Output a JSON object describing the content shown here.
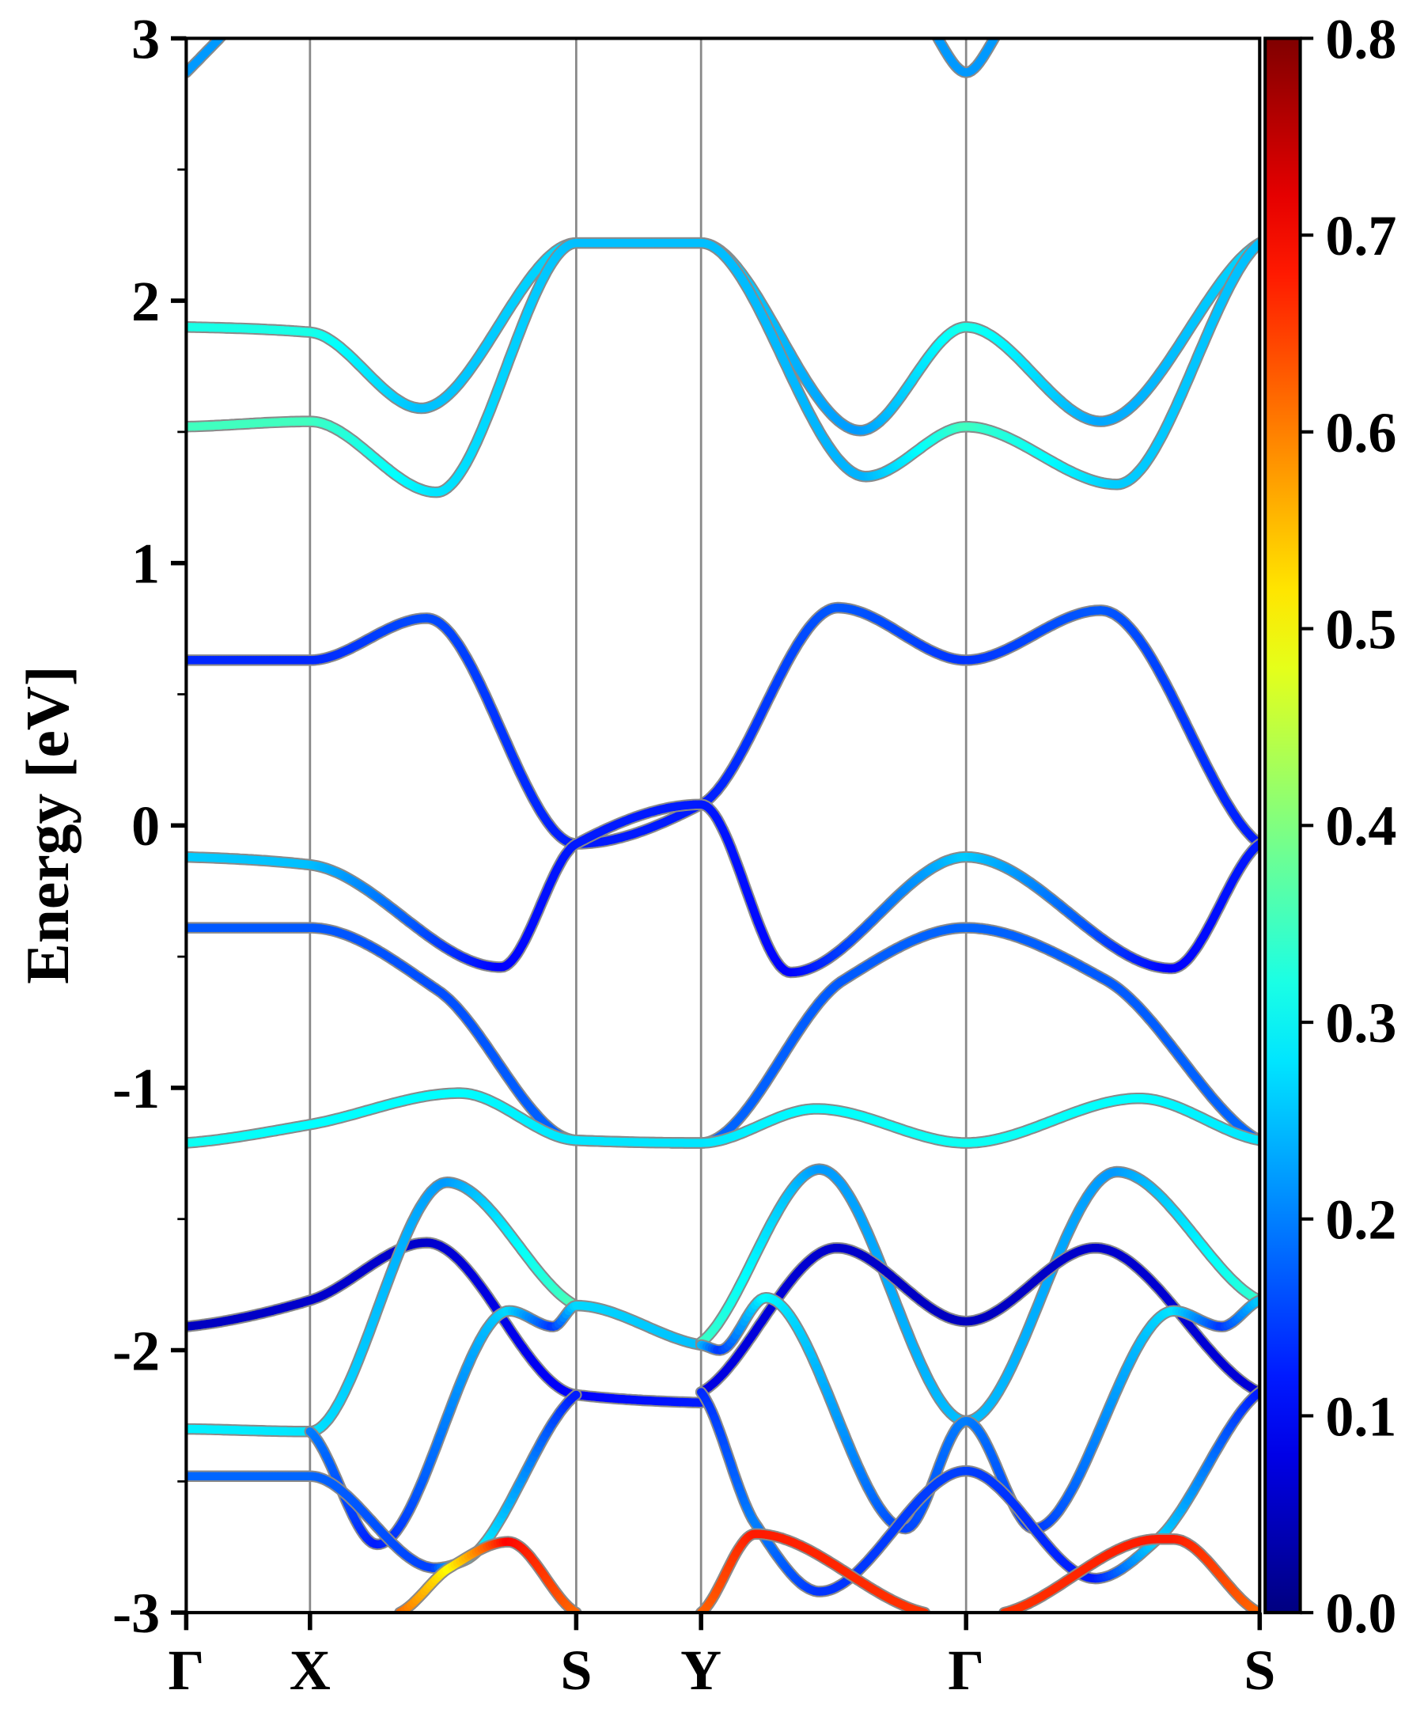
{
  "chart_data": {
    "type": "line",
    "title": "",
    "xlabel": "",
    "ylabel": "Energy [eV]",
    "ylim": [
      -3,
      3
    ],
    "yticks": [
      "3",
      "2",
      "1",
      "0",
      "-1",
      "-2",
      "-3"
    ],
    "ytick_values": [
      3,
      2,
      1,
      0,
      -1,
      -2,
      -3
    ],
    "kpoints": [
      {
        "label": "Γ",
        "k": 0
      },
      {
        "label": "X",
        "k": 0.1153
      },
      {
        "label": "S",
        "k": 0.3633
      },
      {
        "label": "Y",
        "k": 0.4796
      },
      {
        "label": "Γ",
        "k": 0.7265
      },
      {
        "label": "S",
        "k": 1.0
      }
    ],
    "colorbar": {
      "colormap": "jet",
      "range": [
        0,
        0.8
      ],
      "ticks": [
        "0.8",
        "0.7",
        "0.6",
        "0.5",
        "0.4",
        "0.3",
        "0.2",
        "0.1",
        "0.0"
      ],
      "tick_values": [
        0.8,
        0.7,
        0.6,
        0.5,
        0.4,
        0.3,
        0.2,
        0.1,
        0.0
      ]
    },
    "band_point_format": [
      "k",
      "energy_eV",
      "weight"
    ],
    "bands": [
      {
        "name": "C-top-left",
        "points": [
          [
            0,
            2.87,
            0.22
          ],
          [
            0.05,
            3.08,
            0.22
          ]
        ]
      },
      {
        "name": "C-top-gamma",
        "points": [
          [
            0.685,
            3.08,
            0.22
          ],
          [
            0.7265,
            2.87,
            0.22
          ],
          [
            0.768,
            3.08,
            0.22
          ]
        ]
      },
      {
        "name": "A",
        "points": [
          [
            0,
            1.9,
            0.32
          ],
          [
            0.1153,
            1.88,
            0.32
          ],
          [
            0.219,
            1.59,
            0.25
          ],
          [
            0.3633,
            2.22,
            0.27
          ],
          [
            0.4796,
            2.22,
            0.27
          ],
          [
            0.628,
            1.505,
            0.22
          ],
          [
            0.7265,
            1.9,
            0.32
          ],
          [
            0.852,
            1.54,
            0.23
          ],
          [
            1.0,
            2.22,
            0.27
          ]
        ]
      },
      {
        "name": "B",
        "points": [
          [
            0,
            1.52,
            0.35
          ],
          [
            0.1153,
            1.54,
            0.35
          ],
          [
            0.233,
            1.27,
            0.28
          ],
          [
            0.3633,
            2.22,
            0.25
          ],
          [
            0.4796,
            2.22,
            0.25
          ],
          [
            0.633,
            1.33,
            0.24
          ],
          [
            0.7265,
            1.52,
            0.35
          ],
          [
            0.867,
            1.3,
            0.26
          ],
          [
            1.0,
            2.22,
            0.25
          ]
        ]
      },
      {
        "name": "D",
        "points": [
          [
            0,
            0.63,
            0.13
          ],
          [
            0.1153,
            0.63,
            0.13
          ],
          [
            0.224,
            0.79,
            0.16
          ],
          [
            0.3633,
            -0.07,
            0.12
          ],
          [
            0.4796,
            0.08,
            0.12
          ],
          [
            0.607,
            0.83,
            0.17
          ],
          [
            0.7265,
            0.63,
            0.14
          ],
          [
            0.852,
            0.82,
            0.17
          ],
          [
            1.0,
            -0.07,
            0.12
          ]
        ]
      },
      {
        "name": "E",
        "points": [
          [
            0,
            -0.12,
            0.26
          ],
          [
            0.1153,
            -0.15,
            0.25
          ],
          [
            0.293,
            -0.54,
            0.1
          ],
          [
            0.3633,
            -0.07,
            0.12
          ],
          [
            0.4796,
            0.08,
            0.12
          ],
          [
            0.563,
            -0.56,
            0.1
          ],
          [
            0.7265,
            -0.12,
            0.26
          ],
          [
            0.918,
            -0.545,
            0.1
          ],
          [
            1.0,
            -0.07,
            0.12
          ]
        ]
      },
      {
        "name": "F",
        "points": [
          [
            0,
            -0.39,
            0.17
          ],
          [
            0.1153,
            -0.39,
            0.17
          ],
          [
            0.235,
            -0.63,
            0.16
          ],
          [
            0.3633,
            -1.2,
            0.18
          ],
          [
            0.4796,
            -1.21,
            0.18
          ],
          [
            0.612,
            -0.59,
            0.17
          ],
          [
            0.7265,
            -0.39,
            0.18
          ],
          [
            0.857,
            -0.59,
            0.17
          ],
          [
            1.0,
            -1.2,
            0.18
          ]
        ]
      },
      {
        "name": "G",
        "points": [
          [
            0,
            -1.21,
            0.31
          ],
          [
            0.1153,
            -1.14,
            0.3
          ],
          [
            0.255,
            -1.02,
            0.3
          ],
          [
            0.3633,
            -1.2,
            0.28
          ],
          [
            0.4796,
            -1.21,
            0.28
          ],
          [
            0.587,
            -1.08,
            0.3
          ],
          [
            0.7265,
            -1.21,
            0.31
          ],
          [
            0.888,
            -1.04,
            0.3
          ],
          [
            1.0,
            -1.2,
            0.28
          ]
        ]
      },
      {
        "name": "H",
        "points": [
          [
            0,
            -1.91,
            0.05
          ],
          [
            0.1153,
            -1.81,
            0.06
          ],
          [
            0.224,
            -1.59,
            0.06
          ],
          [
            0.3633,
            -2.17,
            0.1
          ],
          [
            0.4796,
            -2.2,
            0.12
          ]
        ]
      },
      {
        "name": "B1",
        "points": [
          [
            0,
            -2.3,
            0.29
          ],
          [
            0.1153,
            -2.31,
            0.28
          ],
          [
            0.243,
            -1.36,
            0.22
          ],
          [
            0.3633,
            -1.83,
            0.36
          ]
        ]
      },
      {
        "name": "B2",
        "points": [
          [
            0.1153,
            -2.31,
            0.2
          ],
          [
            0.178,
            -2.74,
            0.12
          ],
          [
            0.301,
            -1.85,
            0.27
          ],
          [
            0.342,
            -1.91,
            0.14
          ],
          [
            0.3633,
            -1.83,
            0.27
          ],
          [
            0.4796,
            -1.98,
            0.25
          ]
        ]
      },
      {
        "name": "B3",
        "points": [
          [
            0,
            -2.48,
            0.18
          ],
          [
            0.1153,
            -2.48,
            0.18
          ],
          [
            0.232,
            -2.83,
            0.15
          ],
          [
            0.26,
            -2.8,
            0.32
          ],
          [
            0.3633,
            -2.17,
            0.12
          ]
        ]
      },
      {
        "name": "R1",
        "points": [
          [
            0.4796,
            -1.97,
            0.35
          ],
          [
            0.59,
            -1.31,
            0.22
          ],
          [
            0.7265,
            -2.27,
            0.25
          ],
          [
            0.867,
            -1.32,
            0.22
          ],
          [
            1.0,
            -1.81,
            0.34
          ]
        ]
      },
      {
        "name": "R2",
        "points": [
          [
            0.4796,
            -2.16,
            0.08
          ],
          [
            0.606,
            -1.61,
            0.06
          ],
          [
            0.7265,
            -1.89,
            0.05
          ],
          [
            0.847,
            -1.61,
            0.06
          ],
          [
            1.0,
            -2.16,
            0.07
          ]
        ]
      },
      {
        "name": "R3",
        "points": [
          [
            0.4796,
            -1.98,
            0.25
          ],
          [
            0.497,
            -2.0,
            0.14
          ],
          [
            0.54,
            -1.8,
            0.3
          ],
          [
            0.67,
            -2.68,
            0.15
          ],
          [
            0.7265,
            -2.27,
            0.2
          ],
          [
            0.79,
            -2.68,
            0.14
          ],
          [
            0.92,
            -1.85,
            0.28
          ],
          [
            0.965,
            -1.91,
            0.14
          ],
          [
            1.0,
            -1.81,
            0.26
          ]
        ]
      },
      {
        "name": "R4",
        "points": [
          [
            0.4796,
            -2.16,
            0.13
          ],
          [
            0.53,
            -2.66,
            0.2
          ],
          [
            0.59,
            -2.92,
            0.14
          ],
          [
            0.7265,
            -2.46,
            0.15
          ],
          [
            0.847,
            -2.87,
            0.12
          ],
          [
            0.905,
            -2.72,
            0.27
          ],
          [
            1.0,
            -2.16,
            0.12
          ]
        ]
      },
      {
        "name": "O1",
        "points": [
          [
            0.199,
            -3.0,
            0.62
          ],
          [
            0.245,
            -2.83,
            0.5
          ],
          [
            0.3,
            -2.73,
            0.7
          ],
          [
            0.3633,
            -3.0,
            0.62
          ]
        ]
      },
      {
        "name": "O2",
        "points": [
          [
            0.4796,
            -3.0,
            0.62
          ],
          [
            0.53,
            -2.7,
            0.68
          ],
          [
            0.688,
            -3.0,
            0.66
          ]
        ]
      },
      {
        "name": "O3",
        "points": [
          [
            0.762,
            -3.0,
            0.66
          ],
          [
            0.905,
            -2.72,
            0.68
          ],
          [
            0.92,
            -2.72,
            0.68
          ],
          [
            1.0,
            -3.0,
            0.62
          ]
        ]
      }
    ]
  }
}
